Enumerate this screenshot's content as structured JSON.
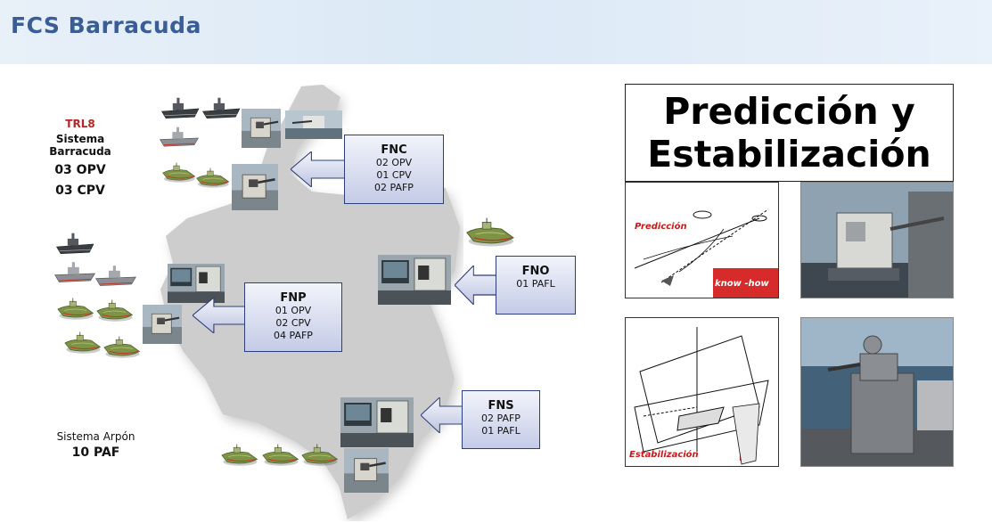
{
  "header": {
    "title": "FCS Barracuda"
  },
  "left_panel": {
    "trl": "TRL8",
    "system": "Sistema Barracuda",
    "opv": "03 OPV",
    "cpv": "03 CPV",
    "arpon_system": "Sistema Arpón",
    "paf": "10 PAF"
  },
  "boxes": {
    "fnc": {
      "title": "FNC",
      "lines": [
        "02 OPV",
        "01 CPV",
        "02 PAFP"
      ]
    },
    "fnp": {
      "title": "FNP",
      "lines": [
        "01 OPV",
        "02 CPV",
        "04 PAFP"
      ]
    },
    "fno": {
      "title": "FNO",
      "lines": [
        "01 PAFL"
      ]
    },
    "fns": {
      "title": "FNS",
      "lines": [
        "02 PAFP",
        "01 PAFL"
      ]
    }
  },
  "right_panel": {
    "title_line1": "Predicción y",
    "title_line2": "Estabilización",
    "prediction_label": "Predicción",
    "stabilization_label": "Estabilización",
    "know_how": "know -how"
  },
  "icons": {
    "map": "colombia-map-icon",
    "ship": "ship-icon",
    "boat": "patrol-boat-icon",
    "turret": "gun-turret-icon",
    "arrow": "arrow-left-icon"
  },
  "colors": {
    "title": "#3a5d96",
    "trl": "#b3262a",
    "box_border": "#2d3f7a",
    "box_fill": "#c4cbe6",
    "map_gray": "#c8c8c8",
    "boat_green": "#7d9446"
  }
}
